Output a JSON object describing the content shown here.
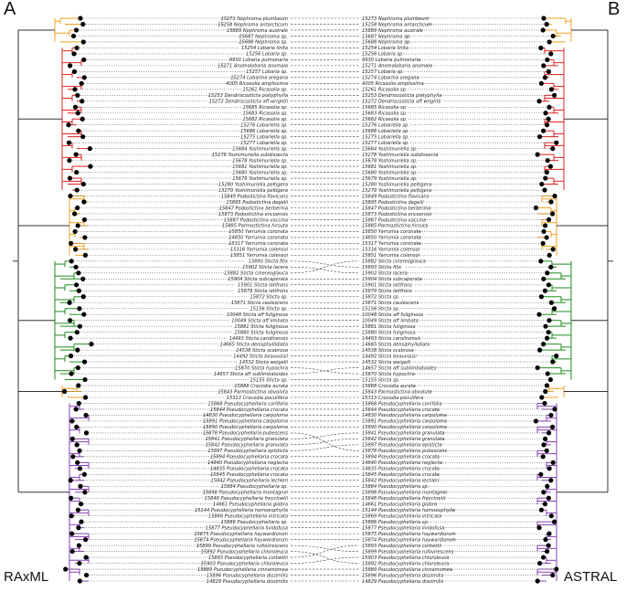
{
  "panels": {
    "left_letter": "A",
    "right_letter": "B",
    "left_method": "RAxML",
    "right_method": "ASTRAL"
  },
  "colors": {
    "orange": "#f0a020",
    "red": "#dd2020",
    "green": "#1e8c1e",
    "purple": "#8a3fb8",
    "backbone": "#333333",
    "dot": "#000000"
  },
  "left_tips": [
    {
      "label": "15273 Nephroma plumbeum",
      "clade": "orange"
    },
    {
      "label": "15258 Nephroma antarcticum",
      "clade": "orange"
    },
    {
      "label": "15889 Nephroma australe",
      "clade": "orange"
    },
    {
      "label": "15687 Nephroma sp.",
      "clade": "orange"
    },
    {
      "label": "15688 Nephroma sp.",
      "clade": "orange"
    },
    {
      "label": "15254 Lobaria linita",
      "clade": "red"
    },
    {
      "label": "15256 Lobaria sp.",
      "clade": "red"
    },
    {
      "label": "9930 Lobaria pulmonaria",
      "clade": "red"
    },
    {
      "label": "15271 Anomalobaria anomala",
      "clade": "red"
    },
    {
      "label": "15257 Lobaria sp.",
      "clade": "red"
    },
    {
      "label": "15274 Lobarina oregana",
      "clade": "red"
    },
    {
      "label": "4005 Ricasolia amplissima",
      "clade": "red"
    },
    {
      "label": "15261 Ricasolia sp.",
      "clade": "red"
    },
    {
      "label": "15253 Dendriscosticta platyphylla",
      "clade": "red"
    },
    {
      "label": "15272 Dendriscosticta aff wrightii",
      "clade": "red"
    },
    {
      "label": "15685 Ricasolia sp.",
      "clade": "red"
    },
    {
      "label": "15683 Ricasolia sp.",
      "clade": "red"
    },
    {
      "label": "15682 Ricasolia sp.",
      "clade": "red"
    },
    {
      "label": "15276 Lobariella sp.",
      "clade": "red"
    },
    {
      "label": "15686 Lobariella sp.",
      "clade": "red"
    },
    {
      "label": "15275 Lobariella sp.",
      "clade": "red"
    },
    {
      "label": "15277 Lobariella sp.",
      "clade": "red"
    },
    {
      "label": "15684 Yoshimuriella sp.",
      "clade": "red"
    },
    {
      "label": "15278 Yoshimuriella subdissecta",
      "clade": "red"
    },
    {
      "label": "15678 Yoshimuriella sp.",
      "clade": "red"
    },
    {
      "label": "15681 Yoshimuriella sp.",
      "clade": "red"
    },
    {
      "label": "15680 Yoshimuriella sp.",
      "clade": "red"
    },
    {
      "label": "15679 Yoshimuriella sp.",
      "clade": "red"
    },
    {
      "label": "15280 Yoshimuriella peltigera",
      "clade": "red"
    },
    {
      "label": "15279 Yoshimuriella peltigera",
      "clade": "red"
    },
    {
      "label": "15849 Podostictina flavicans",
      "clade": "orange"
    },
    {
      "label": "15895 Podostictina degelii",
      "clade": "orange"
    },
    {
      "label": "15847 Podostictina berberina",
      "clade": "orange"
    },
    {
      "label": "15873 Podostictina encoensis",
      "clade": "orange"
    },
    {
      "label": "15887 Podostictina vaccina",
      "clade": "orange"
    },
    {
      "label": "15885 Parmostictina hirsuta",
      "clade": "orange"
    },
    {
      "label": "15850 Yarrumia coronata",
      "clade": "orange"
    },
    {
      "label": "14850 Yarrumia coronata",
      "clade": "orange"
    },
    {
      "label": "15317 Yarrumia coronata",
      "clade": "orange"
    },
    {
      "label": "15316 Yarrumia colensoi",
      "clade": "orange"
    },
    {
      "label": "15851 Yarrumia colensoi",
      "clade": "orange"
    },
    {
      "label": "15893 Sticta filix",
      "clade": "green"
    },
    {
      "label": "15902 Sticta lacera",
      "clade": "green"
    },
    {
      "label": "15882 Sticta cinereoglauca",
      "clade": "green"
    },
    {
      "label": "15904 Sticta subcaperata",
      "clade": "green"
    },
    {
      "label": "15901 Sticta latifrons",
      "clade": "green"
    },
    {
      "label": "15879 Sticta latifrons",
      "clade": "green"
    },
    {
      "label": "15872 Sticta sp.",
      "clade": "green"
    },
    {
      "label": "15871 Sticta caulescens",
      "clade": "green"
    },
    {
      "label": "15156 Sticta sp.",
      "clade": "green"
    },
    {
      "label": "10048 Sticta aff fuliginosa",
      "clade": "green"
    },
    {
      "label": "10049 Sticta aff limbata",
      "clade": "green"
    },
    {
      "label": "15881 Sticta fuliginosa",
      "clade": "green"
    },
    {
      "label": "15880 Sticta fuliginosa",
      "clade": "green"
    },
    {
      "label": "14493 Sticta carolinensis",
      "clade": "green"
    },
    {
      "label": "14665 Sticta densiphyllidiata",
      "clade": "green"
    },
    {
      "label": "14538 Sticta scabrosa",
      "clade": "green"
    },
    {
      "label": "14492 Sticta beauvoisii",
      "clade": "green"
    },
    {
      "label": "14532 Sticta weigelii",
      "clade": "green"
    },
    {
      "label": "15870 Sticta hypochra",
      "clade": "green"
    },
    {
      "label": "14657 Sticta aff sublimbatoides",
      "clade": "green"
    },
    {
      "label": "15155 Sticta sp.",
      "clade": "green"
    },
    {
      "label": "15888 Crocodia aurata",
      "clade": "orange"
    },
    {
      "label": "15843 Parmostictina obvoluta",
      "clade": "orange"
    },
    {
      "label": "15313 Crocodia poculifera",
      "clade": "orange"
    },
    {
      "label": "15868 Pseudocyphellaria coriifolia",
      "clade": "purple"
    },
    {
      "label": "15844 Pseudocyphellaria crocata",
      "clade": "purple"
    },
    {
      "label": "14830 Pseudocyphellaria carpoloma",
      "clade": "purple"
    },
    {
      "label": "15891 Pseudocyphellaria carpoloma",
      "clade": "purple"
    },
    {
      "label": "15890 Pseudocyphellaria carpoloma",
      "clade": "purple"
    },
    {
      "label": "15878 Pseudocyphellaria pubescens",
      "clade": "purple"
    },
    {
      "label": "15841 Pseudocyphellaria granulata",
      "clade": "purple"
    },
    {
      "label": "15842 Pseudocyphellaria granulata",
      "clade": "purple"
    },
    {
      "label": "15897 Pseudocyphellaria episticta",
      "clade": "purple"
    },
    {
      "label": "15894 Pseudocyphellaria crocata",
      "clade": "purple"
    },
    {
      "label": "14840 Pseudocyphellaria neglecta",
      "clade": "purple"
    },
    {
      "label": "14835 Pseudocyphellaria crocata",
      "clade": "purple"
    },
    {
      "label": "15845 Pseudocyphellaria crocata",
      "clade": "purple"
    },
    {
      "label": "15842 Pseudocyphellaria lechleri",
      "clade": "purple"
    },
    {
      "label": "15884 Pseudocyphellaria sp.",
      "clade": "purple"
    },
    {
      "label": "15898 Pseudocyphellaria montagnei",
      "clade": "purple"
    },
    {
      "label": "15848 Pseudocyphellaria freycinetii",
      "clade": "purple"
    },
    {
      "label": "14661 Pseudocyphellaria glabra",
      "clade": "purple"
    },
    {
      "label": "15144 Pseudocyphellaria homoeophylla",
      "clade": "purple"
    },
    {
      "label": "15869 Pseudocyphellaria intricata",
      "clade": "purple"
    },
    {
      "label": "15886 Pseudocyphellaria sp.",
      "clade": "purple"
    },
    {
      "label": "15877 Pseudocyphellaria lividofusa",
      "clade": "purple"
    },
    {
      "label": "15875 Pseudocyphellaria haywardiorum",
      "clade": "purple"
    },
    {
      "label": "15874 Pseudocyphellaria haywardiorum",
      "clade": "purple"
    },
    {
      "label": "15899 Pseudocyphellaria rufovirescens",
      "clade": "purple"
    },
    {
      "label": "15892 Pseudocyphellaria chloroleuca",
      "clade": "purple"
    },
    {
      "label": "15893 Pseudocyphellaria corbettii",
      "clade": "purple"
    },
    {
      "label": "15903 Pseudocyphellaria chloroleuca",
      "clade": "purple"
    },
    {
      "label": "15889 Pseudocyphellaria cinnamomea",
      "clade": "purple"
    },
    {
      "label": "15896 Pseudocyphellaria dissimilis",
      "clade": "purple"
    },
    {
      "label": "14829 Pseudocyphellaria dissimilis",
      "clade": "purple"
    }
  ],
  "right_tips": [
    {
      "label": "15273 Nephroma plumbeum",
      "clade": "orange"
    },
    {
      "label": "15258 Nephroma antarcticum",
      "clade": "orange"
    },
    {
      "label": "15889 Nephroma australe",
      "clade": "orange"
    },
    {
      "label": "15687 Nephroma sp.",
      "clade": "orange"
    },
    {
      "label": "15688 Nephroma sp.",
      "clade": "orange"
    },
    {
      "label": "15254 Lobaria linita",
      "clade": "red"
    },
    {
      "label": "15256 Lobaria sp.",
      "clade": "red"
    },
    {
      "label": "9930 Lobaria pulmonaria",
      "clade": "red"
    },
    {
      "label": "15271 Anomalobaria anomala",
      "clade": "red"
    },
    {
      "label": "15257 Lobaria sp.",
      "clade": "red"
    },
    {
      "label": "15274 Lobarina oregana",
      "clade": "red"
    },
    {
      "label": "4005 Ricasolia amplissima",
      "clade": "red"
    },
    {
      "label": "15261 Ricasolia sp.",
      "clade": "red"
    },
    {
      "label": "15253 Dendriscosticta platyphylla",
      "clade": "red"
    },
    {
      "label": "15272 Dendriscosticta aff wrightii",
      "clade": "red"
    },
    {
      "label": "15685 Ricasolia sp.",
      "clade": "red"
    },
    {
      "label": "15683 Ricasolia sp.",
      "clade": "red"
    },
    {
      "label": "15682 Ricasolia sp.",
      "clade": "red"
    },
    {
      "label": "15276 Lobariella sp.",
      "clade": "red"
    },
    {
      "label": "15686 Lobariella sp.",
      "clade": "red"
    },
    {
      "label": "15275 Lobariella sp.",
      "clade": "red"
    },
    {
      "label": "15277 Lobariella sp.",
      "clade": "red"
    },
    {
      "label": "15684 Yoshimuriella sp.",
      "clade": "red"
    },
    {
      "label": "15278 Yoshimuriella subdissecta",
      "clade": "red"
    },
    {
      "label": "15678 Yoshimuriella sp.",
      "clade": "red"
    },
    {
      "label": "15681 Yoshimuriella sp.",
      "clade": "red"
    },
    {
      "label": "15680 Yoshimuriella sp.",
      "clade": "red"
    },
    {
      "label": "15679 Yoshimuriella sp.",
      "clade": "red"
    },
    {
      "label": "15280 Yoshimuriella peltigera",
      "clade": "red"
    },
    {
      "label": "15279 Yoshimuriella peltigera",
      "clade": "red"
    },
    {
      "label": "15849 Podostictina flavicans",
      "clade": "orange"
    },
    {
      "label": "15895 Podostictina degelii",
      "clade": "orange"
    },
    {
      "label": "15847 Podostictina berberina",
      "clade": "orange"
    },
    {
      "label": "15873 Podostictina encoensis",
      "clade": "orange"
    },
    {
      "label": "15887 Podostictina vaccina",
      "clade": "orange"
    },
    {
      "label": "15885 Parmostictina hirsuta",
      "clade": "orange"
    },
    {
      "label": "15850 Yarrumia coronata",
      "clade": "orange"
    },
    {
      "label": "14850 Yarrumia coronata",
      "clade": "orange"
    },
    {
      "label": "15317 Yarrumia coronata",
      "clade": "orange"
    },
    {
      "label": "15316 Yarrumia colensoi",
      "clade": "orange"
    },
    {
      "label": "15851 Yarrumia colensoi",
      "clade": "orange"
    },
    {
      "label": "15882 Sticta cinereoglauca",
      "clade": "green"
    },
    {
      "label": "15893 Sticta filix",
      "clade": "green"
    },
    {
      "label": "15902 Sticta lacera",
      "clade": "green"
    },
    {
      "label": "15904 Sticta subcaperata",
      "clade": "green"
    },
    {
      "label": "15901 Sticta latifrons",
      "clade": "green"
    },
    {
      "label": "15879 Sticta latifrons",
      "clade": "green"
    },
    {
      "label": "15872 Sticta sp.",
      "clade": "green"
    },
    {
      "label": "15871 Sticta caulescens",
      "clade": "green"
    },
    {
      "label": "15156 Sticta sp.",
      "clade": "green"
    },
    {
      "label": "10048 Sticta aff fuliginosa",
      "clade": "green"
    },
    {
      "label": "10049 Sticta aff limbata",
      "clade": "green"
    },
    {
      "label": "15881 Sticta fuliginosa",
      "clade": "green"
    },
    {
      "label": "15880 Sticta fuliginosa",
      "clade": "green"
    },
    {
      "label": "14493 Sticta carolinensis",
      "clade": "green"
    },
    {
      "label": "14665 Sticta densiphyllidiata",
      "clade": "green"
    },
    {
      "label": "14538 Sticta scabrosa",
      "clade": "green"
    },
    {
      "label": "14492 Sticta beauvoisii",
      "clade": "green"
    },
    {
      "label": "14532 Sticta weigelii",
      "clade": "green"
    },
    {
      "label": "14657 Sticta aff sublimbatoides",
      "clade": "green"
    },
    {
      "label": "15870 Sticta hypochra",
      "clade": "green"
    },
    {
      "label": "15155 Sticta sp.",
      "clade": "green"
    },
    {
      "label": "15888 Crocodia aurata",
      "clade": "orange"
    },
    {
      "label": "15843 Parmostictina obvoluta",
      "clade": "orange"
    },
    {
      "label": "15313 Crocodia poculifera",
      "clade": "orange"
    },
    {
      "label": "15868 Pseudocyphellaria coriifolia",
      "clade": "purple"
    },
    {
      "label": "15844 Pseudocyphellaria crocata",
      "clade": "purple"
    },
    {
      "label": "14830 Pseudocyphellaria carpoloma",
      "clade": "purple"
    },
    {
      "label": "15891 Pseudocyphellaria carpoloma",
      "clade": "purple"
    },
    {
      "label": "15890 Pseudocyphellaria carpoloma",
      "clade": "purple"
    },
    {
      "label": "15841 Pseudocyphellaria granulata",
      "clade": "purple"
    },
    {
      "label": "15842 Pseudocyphellaria granulata",
      "clade": "purple"
    },
    {
      "label": "15897 Pseudocyphellaria episticta",
      "clade": "purple"
    },
    {
      "label": "15878 Pseudocyphellaria pubescens",
      "clade": "purple"
    },
    {
      "label": "15894 Pseudocyphellaria crocata",
      "clade": "purple"
    },
    {
      "label": "14840 Pseudocyphellaria neglecta",
      "clade": "purple"
    },
    {
      "label": "14835 Pseudocyphellaria crocata",
      "clade": "purple"
    },
    {
      "label": "15845 Pseudocyphellaria crocata",
      "clade": "purple"
    },
    {
      "label": "15842 Pseudocyphellaria lechleri",
      "clade": "purple"
    },
    {
      "label": "15884 Pseudocyphellaria sp.",
      "clade": "purple"
    },
    {
      "label": "15898 Pseudocyphellaria montagnei",
      "clade": "purple"
    },
    {
      "label": "15848 Pseudocyphellaria freycinetii",
      "clade": "purple"
    },
    {
      "label": "14661 Pseudocyphellaria glabra",
      "clade": "purple"
    },
    {
      "label": "15144 Pseudocyphellaria homoeophylla",
      "clade": "purple"
    },
    {
      "label": "15869 Pseudocyphellaria intricata",
      "clade": "purple"
    },
    {
      "label": "15886 Pseudocyphellaria sp.",
      "clade": "purple"
    },
    {
      "label": "15877 Pseudocyphellaria lividofusa",
      "clade": "purple"
    },
    {
      "label": "15875 Pseudocyphellaria haywardiorum",
      "clade": "purple"
    },
    {
      "label": "15874 Pseudocyphellaria haywardiorum",
      "clade": "purple"
    },
    {
      "label": "15893 Pseudocyphellaria corbettii",
      "clade": "purple"
    },
    {
      "label": "15899 Pseudocyphellaria rufovirescens",
      "clade": "purple"
    },
    {
      "label": "15903 Pseudocyphellaria chloroleuca",
      "clade": "purple"
    },
    {
      "label": "15892 Pseudocyphellaria chloroleuca",
      "clade": "purple"
    },
    {
      "label": "15889 Pseudocyphellaria cinnamomea",
      "clade": "purple"
    },
    {
      "label": "15896 Pseudocyphellaria dissimilis",
      "clade": "purple"
    },
    {
      "label": "14829 Pseudocyphellaria dissimilis",
      "clade": "purple"
    }
  ]
}
